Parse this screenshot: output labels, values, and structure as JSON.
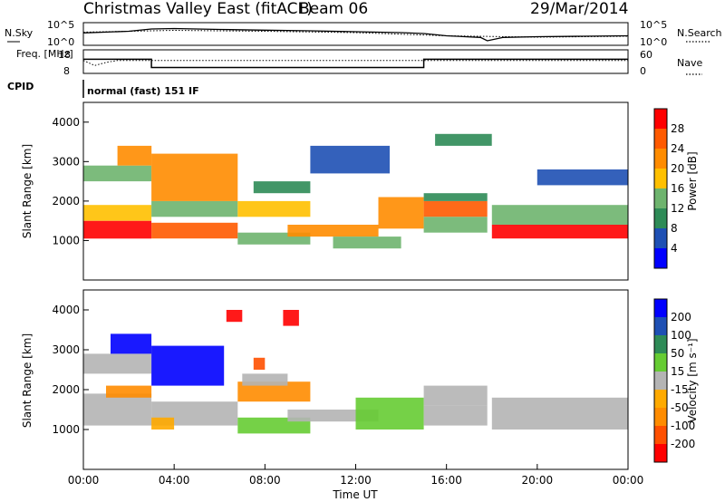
{
  "header": {
    "station": "Christmas Valley East (fitACF)",
    "beam": "Beam 06",
    "date": "29/Mar/2014",
    "cpid_label": "CPID",
    "cpid_value": "normal (fast) 151 IF"
  },
  "chart_data": [
    {
      "type": "line",
      "name": "noise-panel",
      "left_label": "N.Sky",
      "right_label": "N.Search",
      "left_ticks": [
        "10^5",
        "10^0"
      ],
      "right_ticks": [
        "10^5",
        "10^0"
      ],
      "x_range_hours": [
        0,
        24
      ],
      "series": [
        {
          "name": "N.Sky",
          "style": "solid",
          "x": [
            0,
            2,
            3,
            4,
            6,
            8,
            10,
            12,
            14,
            15,
            16,
            17.5,
            17.8,
            18.5,
            20,
            22,
            24
          ],
          "y": [
            0.55,
            0.62,
            0.72,
            0.74,
            0.7,
            0.67,
            0.64,
            0.6,
            0.56,
            0.52,
            0.42,
            0.35,
            0.2,
            0.35,
            0.38,
            0.4,
            0.42
          ]
        },
        {
          "name": "N.Search",
          "style": "dotted",
          "x": [
            0,
            4,
            8,
            12,
            16,
            20,
            24
          ],
          "y": [
            0.58,
            0.66,
            0.62,
            0.56,
            0.42,
            0.36,
            0.4
          ]
        }
      ]
    },
    {
      "type": "line",
      "name": "frequency-panel",
      "left_label": "Freq. [MHz]",
      "right_label": "Nave",
      "left_ticks": [
        18,
        8
      ],
      "right_ticks": [
        60,
        0
      ],
      "x_range_hours": [
        0,
        24
      ],
      "series": [
        {
          "name": "Freq.",
          "style": "solid",
          "x": [
            0,
            3,
            3,
            15,
            15,
            24
          ],
          "y": [
            14,
            14,
            10.5,
            10.5,
            14,
            14
          ]
        },
        {
          "name": "Nave",
          "style": "dotted",
          "x": [
            0,
            0.5,
            1,
            1.5,
            24
          ],
          "y": [
            33,
            20,
            28,
            33,
            33
          ]
        }
      ]
    },
    {
      "type": "heatmap",
      "name": "power-panel",
      "ylabel": "Slant Range [km]",
      "yticks": [
        1000,
        2000,
        3000,
        4000
      ],
      "y_range": [
        0,
        4500
      ],
      "x_range_hours": [
        0,
        24
      ],
      "colorbar_label": "Power [dB]",
      "colorbar_ticks": [
        28,
        24,
        20,
        16,
        12,
        8,
        4
      ],
      "colors": [
        "#0000ff",
        "#1e50b4",
        "#2e8b57",
        "#6eb46e",
        "#ffc000",
        "#ff8c00",
        "#ff5a00",
        "#ff0000"
      ],
      "bands": [
        {
          "x": [
            0,
            3
          ],
          "y": [
            1050,
            1500
          ],
          "level": 7
        },
        {
          "x": [
            0,
            3
          ],
          "y": [
            1500,
            1900
          ],
          "level": 4
        },
        {
          "x": [
            0,
            3
          ],
          "y": [
            2500,
            2900
          ],
          "level": 3
        },
        {
          "x": [
            1.5,
            3
          ],
          "y": [
            2900,
            3400
          ],
          "level": 5
        },
        {
          "x": [
            3,
            6.8
          ],
          "y": [
            1050,
            1450
          ],
          "level": 6
        },
        {
          "x": [
            3,
            6.8
          ],
          "y": [
            1600,
            2000
          ],
          "level": 3
        },
        {
          "x": [
            3,
            6.8
          ],
          "y": [
            2000,
            3200
          ],
          "level": 5
        },
        {
          "x": [
            6.8,
            10
          ],
          "y": [
            1600,
            2000
          ],
          "level": 4
        },
        {
          "x": [
            6.8,
            10
          ],
          "y": [
            900,
            1200
          ],
          "level": 3
        },
        {
          "x": [
            7.5,
            10
          ],
          "y": [
            2200,
            2500
          ],
          "level": 2
        },
        {
          "x": [
            9,
            13
          ],
          "y": [
            1100,
            1400
          ],
          "level": 5
        },
        {
          "x": [
            11,
            14
          ],
          "y": [
            800,
            1100
          ],
          "level": 3
        },
        {
          "x": [
            10,
            13.5
          ],
          "y": [
            2700,
            3400
          ],
          "level": 1
        },
        {
          "x": [
            13,
            15
          ],
          "y": [
            1300,
            2100
          ],
          "level": 5
        },
        {
          "x": [
            15,
            17.8
          ],
          "y": [
            1600,
            2000
          ],
          "level": 6
        },
        {
          "x": [
            15,
            17.8
          ],
          "y": [
            1200,
            1600
          ],
          "level": 3
        },
        {
          "x": [
            15,
            17.8
          ],
          "y": [
            2000,
            2200
          ],
          "level": 2
        },
        {
          "x": [
            18,
            24
          ],
          "y": [
            1050,
            1400
          ],
          "level": 7
        },
        {
          "x": [
            18,
            24
          ],
          "y": [
            1400,
            1900
          ],
          "level": 3
        },
        {
          "x": [
            15.5,
            18
          ],
          "y": [
            3400,
            3700
          ],
          "level": 2
        },
        {
          "x": [
            20,
            24
          ],
          "y": [
            2400,
            2800
          ],
          "level": 1
        }
      ]
    },
    {
      "type": "heatmap",
      "name": "velocity-panel",
      "ylabel": "Slant Range [km]",
      "yticks": [
        1000,
        2000,
        3000,
        4000
      ],
      "y_range": [
        0,
        4500
      ],
      "x_range_hours": [
        0,
        24
      ],
      "xticks": [
        "00:00",
        "04:00",
        "08:00",
        "12:00",
        "16:00",
        "20:00",
        "00:00"
      ],
      "xlabel": "Time UT",
      "colorbar_label": "Velocity [m s⁻¹]",
      "colorbar_ticks": [
        200,
        100,
        50,
        15,
        -15,
        -50,
        -100,
        -200
      ],
      "colors": [
        "#ff0000",
        "#ff5000",
        "#ff8c00",
        "#ffaa00",
        "#b4b4b4",
        "#66cc33",
        "#2e8b57",
        "#1e50b4",
        "#0000ff"
      ],
      "bands": [
        {
          "x": [
            0,
            3
          ],
          "y": [
            1100,
            1900
          ],
          "level": 4
        },
        {
          "x": [
            0,
            3
          ],
          "y": [
            2400,
            2900
          ],
          "level": 4
        },
        {
          "x": [
            1,
            3
          ],
          "y": [
            1800,
            2100
          ],
          "level": 2
        },
        {
          "x": [
            1.2,
            3
          ],
          "y": [
            2900,
            3400
          ],
          "level": 8
        },
        {
          "x": [
            3,
            6.2
          ],
          "y": [
            2100,
            3100
          ],
          "level": 8
        },
        {
          "x": [
            3,
            6.8
          ],
          "y": [
            1100,
            1700
          ],
          "level": 4
        },
        {
          "x": [
            3,
            4
          ],
          "y": [
            1000,
            1300
          ],
          "level": 3
        },
        {
          "x": [
            6.8,
            10
          ],
          "y": [
            1700,
            2200
          ],
          "level": 2
        },
        {
          "x": [
            6.8,
            10
          ],
          "y": [
            900,
            1300
          ],
          "level": 5
        },
        {
          "x": [
            7,
            9
          ],
          "y": [
            2100,
            2400
          ],
          "level": 4
        },
        {
          "x": [
            9,
            13
          ],
          "y": [
            1200,
            1500
          ],
          "level": 4
        },
        {
          "x": [
            12,
            15
          ],
          "y": [
            1000,
            1800
          ],
          "level": 5
        },
        {
          "x": [
            15,
            17.8
          ],
          "y": [
            1600,
            2100
          ],
          "level": 4
        },
        {
          "x": [
            15,
            17.8
          ],
          "y": [
            1100,
            1600
          ],
          "level": 4
        },
        {
          "x": [
            18,
            24
          ],
          "y": [
            1000,
            1800
          ],
          "level": 4
        },
        {
          "x": [
            6.3,
            7
          ],
          "y": [
            3700,
            4000
          ],
          "level": 0
        },
        {
          "x": [
            8.8,
            9.5
          ],
          "y": [
            3600,
            4000
          ],
          "level": 0
        },
        {
          "x": [
            7.5,
            8
          ],
          "y": [
            2500,
            2800
          ],
          "level": 1
        }
      ]
    }
  ]
}
